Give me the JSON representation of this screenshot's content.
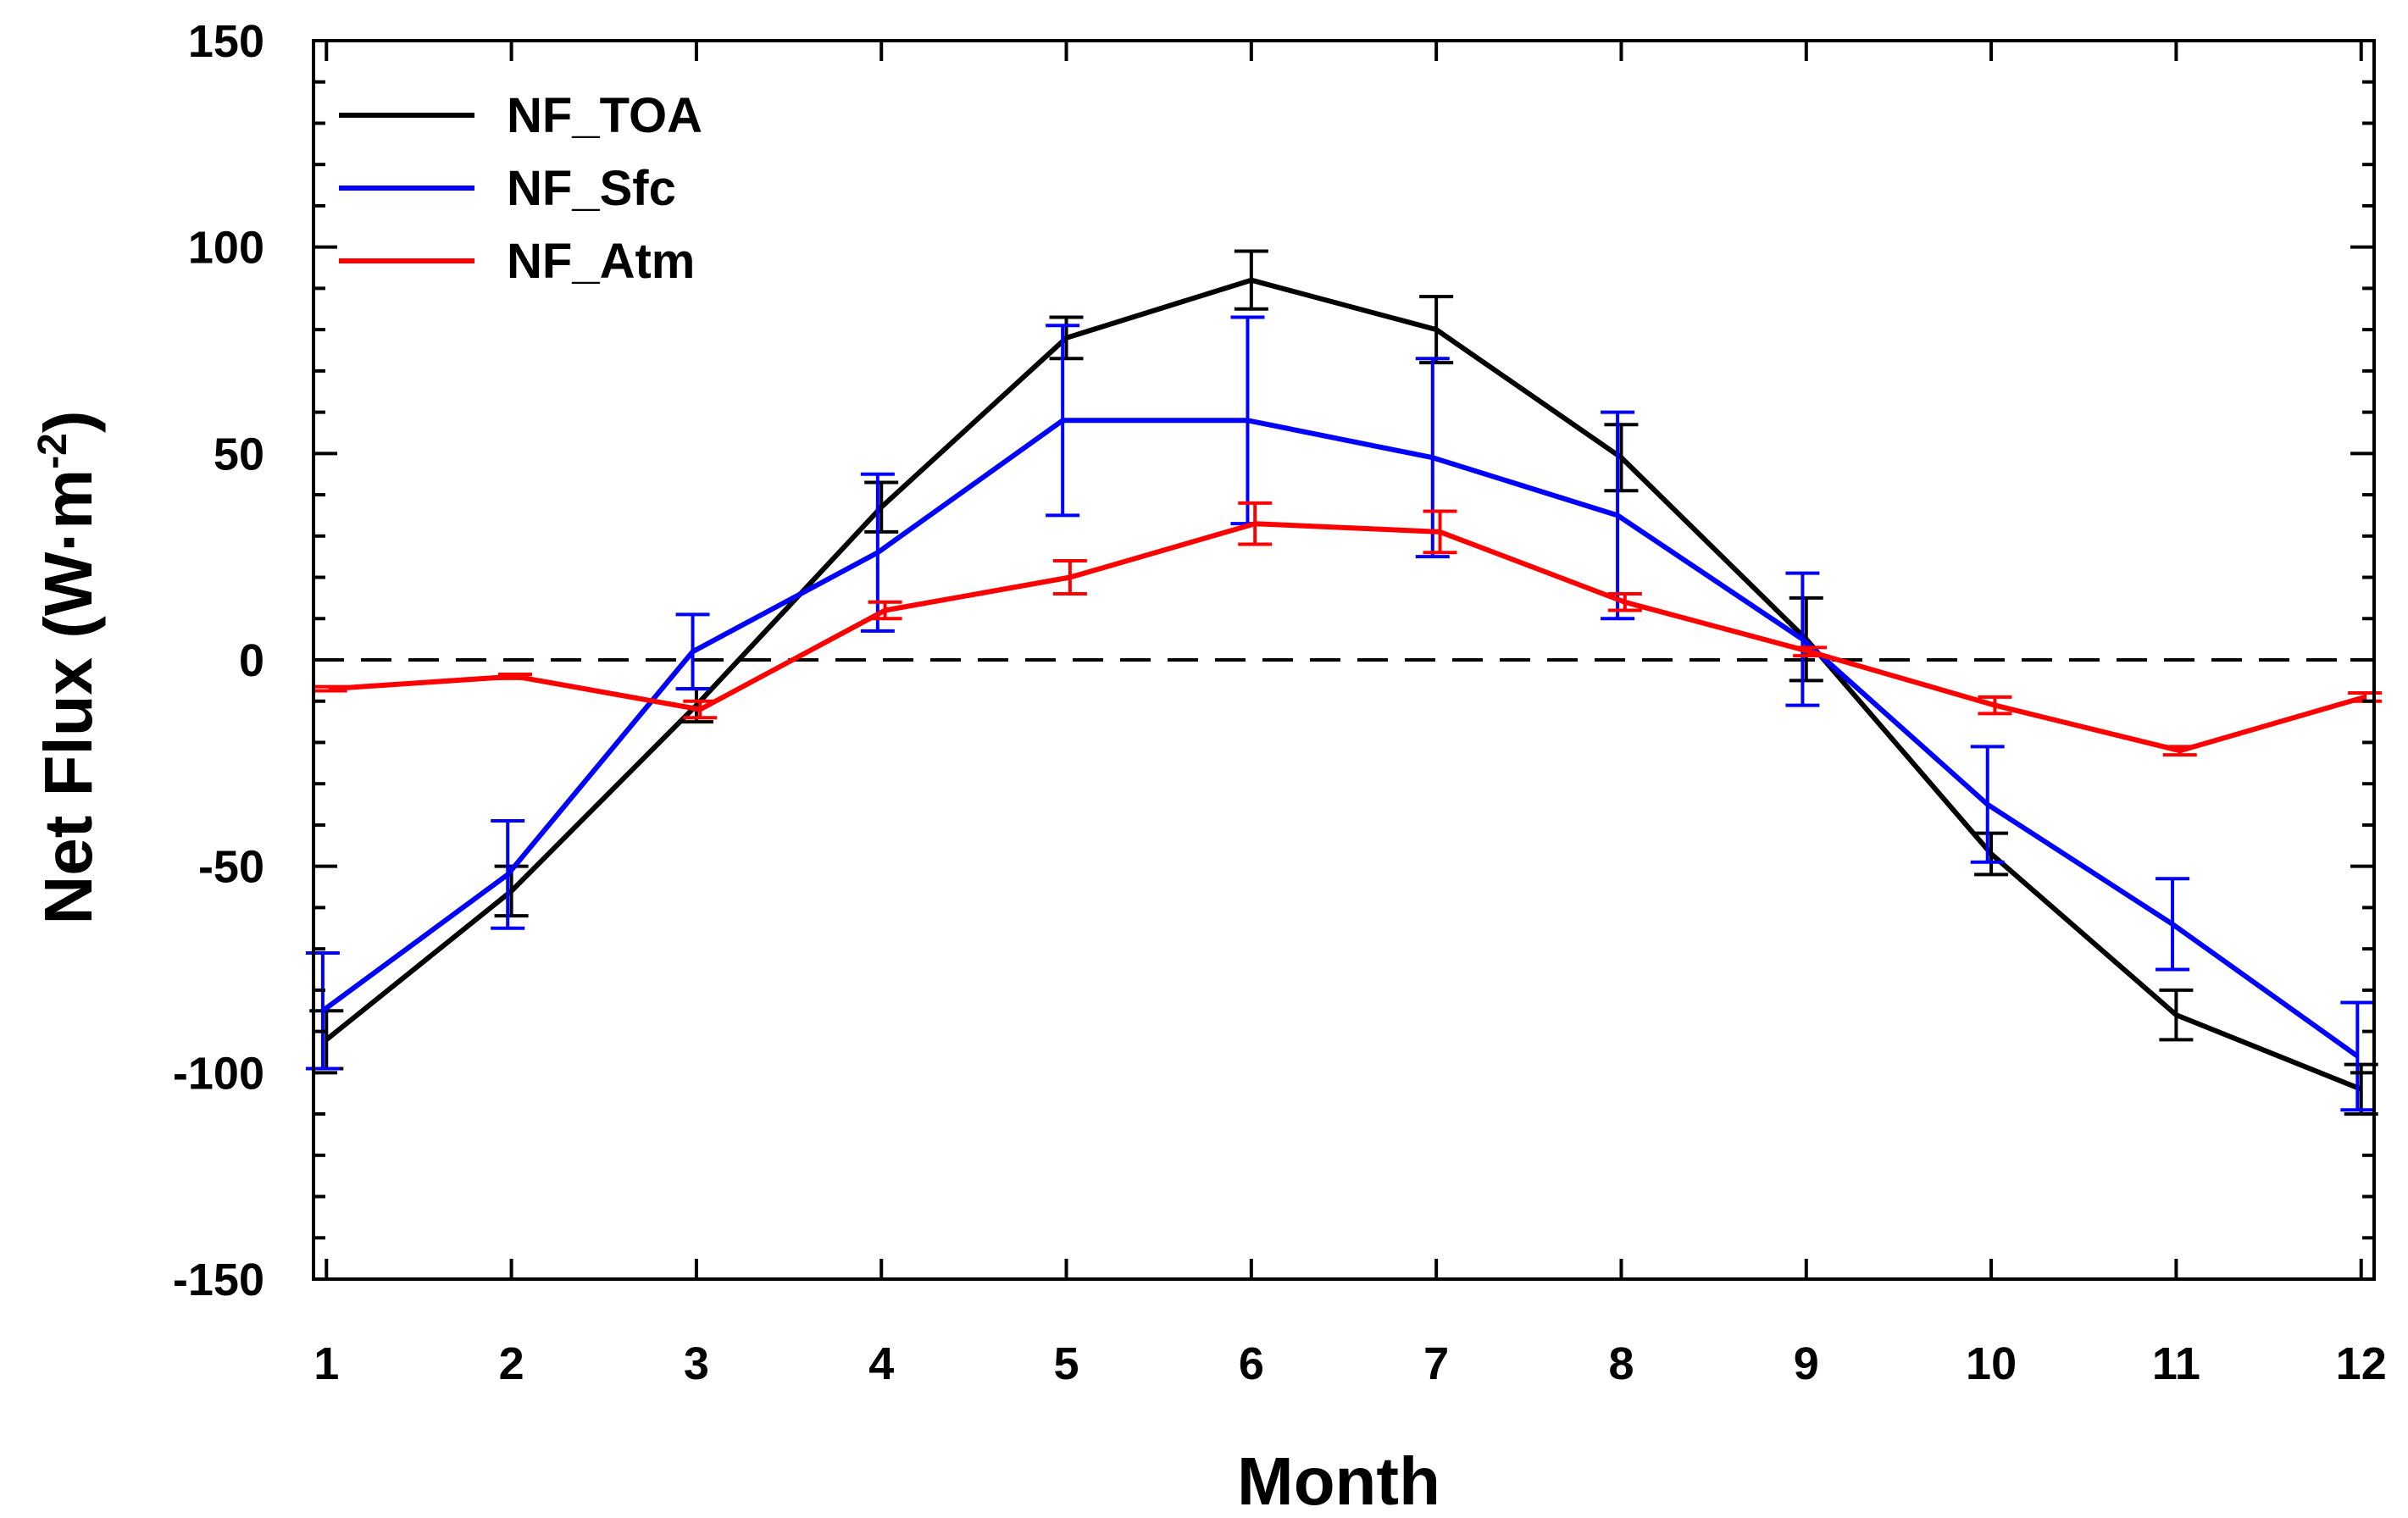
{
  "chart_data": {
    "type": "line",
    "title": "",
    "xlabel": "Month",
    "ylabel": "Net Flux (W·m",
    "ylabel_superscript": "-2",
    "ylabel_suffix": ")",
    "x": [
      1,
      2,
      3,
      4,
      5,
      6,
      7,
      8,
      9,
      10,
      11,
      12
    ],
    "xlim": [
      0.93,
      12.07
    ],
    "ylim": [
      -150,
      150
    ],
    "xticks": [
      1,
      2,
      3,
      4,
      5,
      6,
      7,
      8,
      9,
      10,
      11,
      12
    ],
    "yticks": [
      -150,
      -100,
      -50,
      0,
      50,
      100,
      150
    ],
    "reference_line": {
      "y": 0,
      "style": "dashed",
      "color": "#000000"
    },
    "grid": false,
    "legend_position": "top-left",
    "series": [
      {
        "name": "NF_TOA",
        "color": "#000000",
        "x_offset": 0,
        "values": [
          -92,
          -56,
          -11,
          37,
          78,
          92,
          80,
          49,
          5,
          -47,
          -86,
          -104
        ],
        "errors": [
          7,
          6,
          4,
          6,
          5,
          7,
          8,
          8,
          10,
          5,
          6,
          6
        ]
      },
      {
        "name": "NF_Sfc",
        "color": "#0000ff",
        "x_offset": -0.02,
        "values": [
          -85,
          -52,
          2,
          26,
          58,
          58,
          49,
          35,
          5,
          -35,
          -64,
          -96
        ],
        "errors": [
          14,
          13,
          9,
          19,
          23,
          25,
          24,
          25,
          16,
          14,
          11,
          13
        ]
      },
      {
        "name": "NF_Atm",
        "color": "#ff0000",
        "x_offset": 0.02,
        "values": [
          -7,
          -4,
          -12,
          12,
          20,
          33,
          31,
          14,
          2,
          -11,
          -22,
          -9
        ],
        "errors": [
          0.5,
          0.5,
          2,
          2,
          4,
          5,
          5,
          2,
          1,
          2,
          1,
          1
        ]
      }
    ]
  }
}
